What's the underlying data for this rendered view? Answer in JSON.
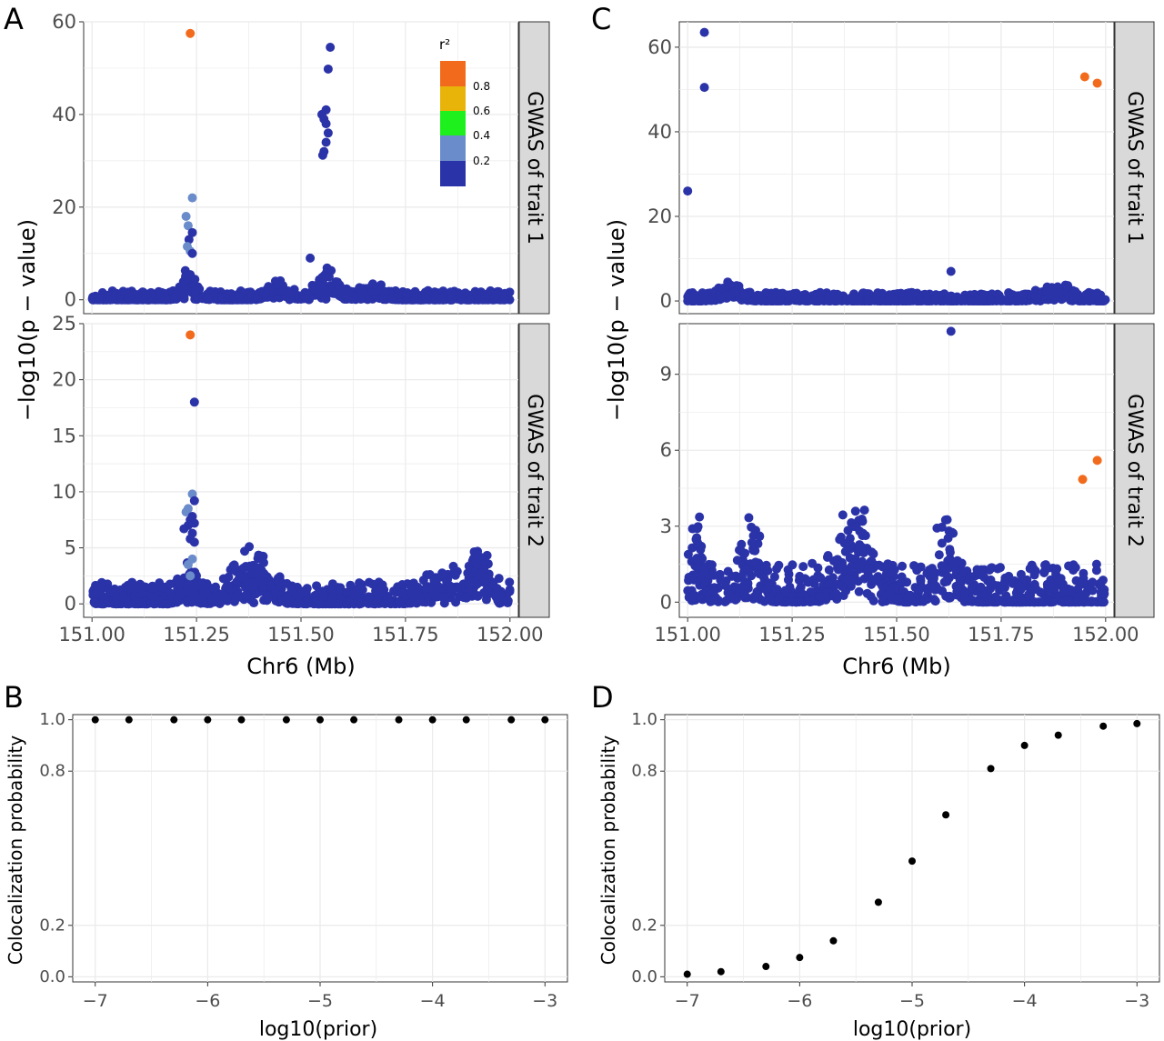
{
  "figure": {
    "panel_labels": [
      "A",
      "B",
      "C",
      "D"
    ],
    "colors": {
      "dot": "#2b33a8",
      "lead": "#f26b1d",
      "r2_04": "#6b8cca",
      "r2_06": "#1ef01e",
      "r2_08": "#e8b40a",
      "strip_fill": "#d9d9d9",
      "grid": "#ebebeb",
      "point_black": "#000000"
    }
  },
  "chart_data": [
    {
      "panel": "A",
      "type": "scatter",
      "xlabel": "Chr6 (Mb)",
      "ylabel": "−log10(p − value)",
      "xlim": [
        150.98,
        152.02
      ],
      "xticks": [
        "151.00",
        "151.25",
        "151.50",
        "151.75",
        "152.00"
      ],
      "xtick_values": [
        151.0,
        151.25,
        151.5,
        151.75,
        152.0
      ],
      "legend": {
        "title": "r²",
        "breaks": [
          "0.8",
          "0.6",
          "0.4",
          "0.2"
        ],
        "break_values": [
          0.8,
          0.6,
          0.4,
          0.2
        ],
        "position": "top-right"
      },
      "facets": [
        {
          "strip": "GWAS of trait 1",
          "ylim": [
            -3,
            60
          ],
          "yticks": [
            "0",
            "20",
            "40",
            "60"
          ],
          "ytick_values": [
            0,
            20,
            40,
            60
          ],
          "highlighted": [
            {
              "x": 151.235,
              "y": 57.5,
              "r2": 1.0
            },
            {
              "x": 151.57,
              "y": 54.5,
              "r2": 0.1
            },
            {
              "x": 151.565,
              "y": 49.8,
              "r2": 0.1
            },
            {
              "x": 151.56,
              "y": 41.0,
              "r2": 0.1
            },
            {
              "x": 151.55,
              "y": 40.0,
              "r2": 0.1
            },
            {
              "x": 151.555,
              "y": 39.0,
              "r2": 0.1
            },
            {
              "x": 151.56,
              "y": 38.0,
              "r2": 0.1
            },
            {
              "x": 151.565,
              "y": 36.0,
              "r2": 0.1
            },
            {
              "x": 151.56,
              "y": 34.0,
              "r2": 0.1
            },
            {
              "x": 151.555,
              "y": 32.0,
              "r2": 0.1
            },
            {
              "x": 151.552,
              "y": 31.2,
              "r2": 0.1
            },
            {
              "x": 151.24,
              "y": 22.0,
              "r2": 0.3
            },
            {
              "x": 151.225,
              "y": 18.0,
              "r2": 0.3
            },
            {
              "x": 151.23,
              "y": 16.0,
              "r2": 0.3
            },
            {
              "x": 151.24,
              "y": 14.5,
              "r2": 0.1
            },
            {
              "x": 151.232,
              "y": 13.0,
              "r2": 0.1
            },
            {
              "x": 151.228,
              "y": 11.5,
              "r2": 0.3
            },
            {
              "x": 151.235,
              "y": 10.5,
              "r2": 0.3
            },
            {
              "x": 151.24,
              "y": 10.0,
              "r2": 0.1
            },
            {
              "x": 151.522,
              "y": 9.0,
              "r2": 0.1
            }
          ],
          "background": {
            "peaks": [
              [
                151.23,
                5.5,
                0.02
              ],
              [
                151.45,
                3.5,
                0.03
              ],
              [
                151.56,
                6.0,
                0.03
              ],
              [
                151.67,
                2.5,
                0.03
              ]
            ],
            "max_base": 2.0
          }
        },
        {
          "strip": "GWAS of trait 2",
          "ylim": [
            -1.2,
            25
          ],
          "yticks": [
            "0",
            "5",
            "10",
            "15",
            "20",
            "25"
          ],
          "ytick_values": [
            0,
            5,
            10,
            15,
            20,
            25
          ],
          "highlighted": [
            {
              "x": 151.235,
              "y": 24.0,
              "r2": 1.0
            },
            {
              "x": 151.245,
              "y": 18.0,
              "r2": 0.1
            },
            {
              "x": 151.24,
              "y": 9.8,
              "r2": 0.3
            },
            {
              "x": 151.245,
              "y": 9.2,
              "r2": 0.1
            },
            {
              "x": 151.23,
              "y": 8.5,
              "r2": 0.3
            },
            {
              "x": 151.225,
              "y": 8.2,
              "r2": 0.3
            },
            {
              "x": 151.24,
              "y": 7.8,
              "r2": 0.1
            },
            {
              "x": 151.235,
              "y": 7.5,
              "r2": 0.1
            },
            {
              "x": 151.245,
              "y": 7.2,
              "r2": 0.1
            },
            {
              "x": 151.23,
              "y": 7.0,
              "r2": 0.1
            },
            {
              "x": 151.22,
              "y": 6.7,
              "r2": 0.1
            },
            {
              "x": 151.24,
              "y": 6.3,
              "r2": 0.1
            },
            {
              "x": 151.235,
              "y": 5.8,
              "r2": 0.1
            },
            {
              "x": 151.245,
              "y": 5.5,
              "r2": 0.1
            },
            {
              "x": 151.24,
              "y": 4.0,
              "r2": 0.3
            },
            {
              "x": 151.23,
              "y": 3.5,
              "r2": 0.3
            },
            {
              "x": 151.235,
              "y": 2.5,
              "r2": 0.3
            }
          ],
          "background": {
            "peaks": [
              [
                151.38,
                4.0,
                0.05
              ],
              [
                151.93,
                4.5,
                0.03
              ],
              [
                151.23,
                3.0,
                0.02
              ],
              [
                151.85,
                2.0,
                0.05
              ]
            ],
            "max_base": 2.0
          }
        }
      ]
    },
    {
      "panel": "B",
      "type": "scatter",
      "xlabel": "log10(prior)",
      "ylabel": "Colocalization probability",
      "xlim": [
        -7.2,
        -2.8
      ],
      "xticks": [
        "−7",
        "−6",
        "−5",
        "−4",
        "−3"
      ],
      "xtick_values": [
        -7,
        -6,
        -5,
        -4,
        -3
      ],
      "ylim": [
        -0.02,
        1.02
      ],
      "yticks": [
        "0.0",
        "0.2",
        "0.8",
        "1.0"
      ],
      "ytick_values": [
        0.0,
        0.2,
        0.8,
        1.0
      ],
      "x": [
        -7,
        -6.7,
        -6.3,
        -6,
        -5.7,
        -5.3,
        -5,
        -4.7,
        -4.3,
        -4,
        -3.7,
        -3.3,
        -3
      ],
      "y": [
        1,
        1,
        1,
        1,
        1,
        1,
        1,
        1,
        1,
        1,
        1,
        1,
        1
      ]
    },
    {
      "panel": "C",
      "type": "scatter",
      "xlabel": "Chr6 (Mb)",
      "ylabel": "−log10(p − value)",
      "xlim": [
        150.98,
        152.02
      ],
      "xticks": [
        "151.00",
        "151.25",
        "151.50",
        "151.75",
        "152.00"
      ],
      "xtick_values": [
        151.0,
        151.25,
        151.5,
        151.75,
        152.0
      ],
      "facets": [
        {
          "strip": "GWAS of trait 1",
          "ylim": [
            -3,
            66
          ],
          "yticks": [
            "0",
            "20",
            "40",
            "60"
          ],
          "ytick_values": [
            0,
            20,
            40,
            60
          ],
          "highlighted": [
            {
              "x": 151.04,
              "y": 63.5,
              "r2": 0.1
            },
            {
              "x": 151.04,
              "y": 50.5,
              "r2": 0.1
            },
            {
              "x": 151.95,
              "y": 53.0,
              "r2": 1.0
            },
            {
              "x": 151.98,
              "y": 51.5,
              "r2": 1.0
            },
            {
              "x": 151.0,
              "y": 26.0,
              "r2": 0.1
            },
            {
              "x": 151.63,
              "y": 7.0,
              "r2": 0.1
            }
          ],
          "background": {
            "peaks": [
              [
                151.1,
                3.5,
                0.03
              ],
              [
                151.88,
                3.0,
                0.04
              ]
            ],
            "max_base": 2.0
          }
        },
        {
          "strip": "GWAS of trait 2",
          "ylim": [
            -0.6,
            11
          ],
          "yticks": [
            "0",
            "3",
            "6",
            "9"
          ],
          "ytick_values": [
            0,
            3,
            6,
            9
          ],
          "highlighted": [
            {
              "x": 151.63,
              "y": 10.7,
              "r2": 0.1
            },
            {
              "x": 151.98,
              "y": 5.6,
              "r2": 1.0
            },
            {
              "x": 151.945,
              "y": 4.85,
              "r2": 1.0
            }
          ],
          "background": {
            "peaks": [
              [
                151.02,
                2.8,
                0.02
              ],
              [
                151.4,
                3.2,
                0.05
              ],
              [
                151.62,
                3.0,
                0.03
              ],
              [
                151.15,
                2.2,
                0.03
              ]
            ],
            "max_base": 1.5
          }
        }
      ]
    },
    {
      "panel": "D",
      "type": "scatter",
      "xlabel": "log10(prior)",
      "ylabel": "Colocalization probability",
      "xlim": [
        -7.2,
        -2.8
      ],
      "xticks": [
        "−7",
        "−6",
        "−5",
        "−4",
        "−3"
      ],
      "xtick_values": [
        -7,
        -6,
        -5,
        -4,
        -3
      ],
      "ylim": [
        -0.02,
        1.02
      ],
      "yticks": [
        "0.0",
        "0.2",
        "0.8",
        "1.0"
      ],
      "ytick_values": [
        0.0,
        0.2,
        0.8,
        1.0
      ],
      "x": [
        -7,
        -6.7,
        -6.3,
        -6,
        -5.7,
        -5.3,
        -5,
        -4.7,
        -4.3,
        -4,
        -3.7,
        -3.3,
        -3
      ],
      "y": [
        0.01,
        0.02,
        0.04,
        0.075,
        0.14,
        0.29,
        0.45,
        0.63,
        0.81,
        0.9,
        0.94,
        0.975,
        0.985
      ]
    }
  ]
}
